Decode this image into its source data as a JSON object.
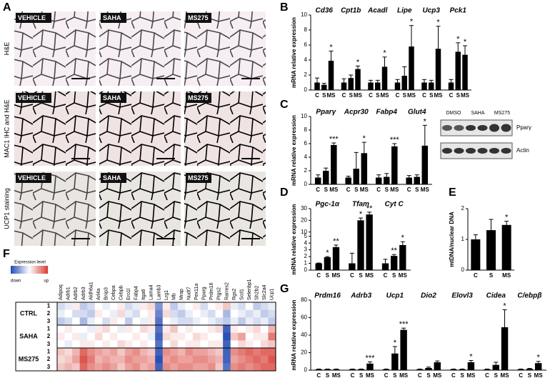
{
  "panel_labels": [
    "A",
    "B",
    "C",
    "D",
    "E",
    "F",
    "G"
  ],
  "micrographs": {
    "columns": [
      "VEHICLE",
      "SAHA",
      "MS275"
    ],
    "rows": [
      "H&E",
      "MAC1 IHC and H&E",
      "UCP1 staining"
    ]
  },
  "blot": {
    "lanes": [
      "DMSO",
      "SAHA",
      "MS275"
    ],
    "bands": [
      "Pparγ",
      "Actin"
    ]
  },
  "chart_data": [
    {
      "type": "bar",
      "ylabel": "mRNA relative expression",
      "categories": [
        "Cd36",
        "Cpt1b",
        "Acadl",
        "Lipe",
        "Ucp3",
        "Pck1"
      ],
      "series": [
        {
          "name": "C",
          "color": "#000000",
          "values": [
            1.0,
            1.0,
            1.0,
            1.0,
            1.0,
            1.0
          ],
          "errors": [
            0.6,
            0.5,
            0.3,
            0.4,
            0.4,
            0.4
          ]
        },
        {
          "name": "S",
          "color": "#000000",
          "values": [
            0.7,
            1.6,
            1.0,
            1.9,
            1.0,
            5.1
          ],
          "errors": [
            0.2,
            0.4,
            0.3,
            1.2,
            0.3,
            1.2
          ],
          "significance": [
            null,
            null,
            null,
            null,
            null,
            "*"
          ]
        },
        {
          "name": "MS",
          "color": "#000000",
          "values": [
            3.9,
            2.8,
            3.1,
            5.8,
            5.5,
            4.7
          ],
          "errors": [
            1.3,
            0.4,
            1.3,
            2.8,
            3.0,
            1.2
          ],
          "significance": [
            "*",
            "*",
            "*",
            "*",
            "*",
            "*"
          ]
        }
      ],
      "ylim": [
        0,
        10
      ],
      "yticks": [
        0,
        2,
        4,
        6,
        8,
        10
      ]
    },
    {
      "type": "bar",
      "ylabel": "mRNA relative expression",
      "categories": [
        "Pparγ",
        "Acpr30",
        "Fabp4",
        "Glut4"
      ],
      "series": [
        {
          "name": "C",
          "color": "#000000",
          "values": [
            1.0,
            1.0,
            1.0,
            1.0
          ],
          "errors": [
            0.4,
            0.2,
            0.4,
            0.3
          ]
        },
        {
          "name": "S",
          "color": "#000000",
          "values": [
            2.0,
            2.3,
            1.1,
            1.1
          ],
          "errors": [
            0.4,
            2.4,
            0.5,
            0.3
          ]
        },
        {
          "name": "MS",
          "color": "#000000",
          "values": [
            5.8,
            4.6,
            5.6,
            5.7
          ],
          "errors": [
            0.3,
            1.6,
            0.4,
            3.0
          ],
          "significance": [
            "***",
            "*",
            "***",
            "*"
          ]
        }
      ],
      "ylim": [
        0,
        10
      ],
      "yticks": [
        0,
        2,
        4,
        6,
        8,
        10
      ]
    },
    {
      "type": "bar",
      "ylabel": "mRNA relative expression",
      "categories": [
        "Pgc-1α",
        "Tfam",
        "Cyt C"
      ],
      "series": [
        {
          "name": "C",
          "color": "#000000",
          "values": [
            1.0,
            1.0,
            1.0
          ],
          "errors": [
            0.05,
            1.5,
            0.6
          ]
        },
        {
          "name": "S",
          "color": "#000000",
          "values": [
            1.9,
            20,
            2.1
          ],
          "errors": [
            0.1,
            2,
            0.2
          ],
          "significance": [
            "*",
            "*",
            "**"
          ]
        },
        {
          "name": "MS",
          "color": "#000000",
          "values": [
            3.4,
            25,
            3.7
          ],
          "errors": [
            0.3,
            2,
            0.5
          ],
          "significance": [
            "**",
            "**",
            "*"
          ]
        }
      ],
      "ylim": [
        0,
        30
      ],
      "axis_break": [
        5,
        10
      ],
      "yticks": [
        0,
        1,
        2,
        3,
        4,
        5,
        10,
        20,
        30
      ]
    },
    {
      "type": "bar",
      "ylabel": "mtDNA/nuclear DNA",
      "categories": [
        "C",
        "S",
        "MS"
      ],
      "color": "#000000",
      "values": [
        1.0,
        1.3,
        1.47
      ],
      "errors": [
        0.15,
        0.35,
        0.12
      ],
      "significance": [
        null,
        null,
        "*"
      ],
      "ylim": [
        0,
        2
      ],
      "yticks": [
        0,
        1,
        2
      ]
    },
    {
      "type": "heatmap",
      "colorbar": {
        "title": "Expression level",
        "low": "down",
        "high": "up",
        "zlim": [
          -1,
          1
        ],
        "low_color": "#2b50b6",
        "high_color": "#d8433b"
      },
      "genes": [
        "Adipoq",
        "Adrb1",
        "Adrb2",
        "Adrb3",
        "Aldh6a1",
        "Arl4a",
        "Bnip3",
        "Cebpa",
        "Cebpb",
        "Ero1l",
        "Fabp4",
        "Itga6",
        "Lama4",
        "Lamb3",
        "Lrg1",
        "Mb",
        "Mrap",
        "Nudt7",
        "Pex11a",
        "Pparg",
        "Prdm16",
        "Ptgs2",
        "Rarres2",
        "Rgs2",
        "Scd1",
        "Selenbp1",
        "Sh2b2",
        "Slc2a4",
        "Ucp1"
      ],
      "groups": [
        "CTRL",
        "SAHA",
        "MS275"
      ],
      "row_labels": [
        "1",
        "2",
        "3",
        "1",
        "2",
        "3",
        "1",
        "2",
        "3"
      ],
      "values": [
        [
          -0.2,
          -0.1,
          0.1,
          -0.3,
          -0.2,
          0,
          -0.1,
          0,
          0.1,
          -0.2,
          -0.1,
          0.1,
          0.2,
          -0.6,
          0.1,
          -0.3,
          -0.1,
          0,
          0.1,
          -0.2,
          0,
          0.1,
          0.3,
          -0.1,
          -0.2,
          0,
          -0.3,
          -0.2,
          -0.1
        ],
        [
          -0.1,
          0,
          -0.2,
          -0.2,
          -0.3,
          0.1,
          0,
          -0.1,
          0.2,
          -0.1,
          -0.2,
          0,
          0.1,
          -0.7,
          0.2,
          -0.2,
          -0.3,
          -0.1,
          0,
          -0.1,
          -0.2,
          0,
          -0.4,
          0,
          -0.1,
          -0.2,
          -0.1,
          -0.3,
          -0.2
        ],
        [
          -0.3,
          -0.2,
          0,
          -0.4,
          -0.1,
          0,
          -0.2,
          0.1,
          0,
          -0.3,
          0,
          -0.1,
          0.1,
          -0.8,
          0,
          -0.1,
          -0.2,
          -0.2,
          -0.1,
          0,
          -0.1,
          -0.2,
          -0.3,
          -0.1,
          -0.3,
          -0.1,
          -0.2,
          -0.1,
          -0.3
        ],
        [
          0,
          0.1,
          0,
          0,
          -0.1,
          0.1,
          0.2,
          0,
          -0.1,
          0.1,
          0,
          0.2,
          0.1,
          -0.8,
          0.1,
          0.3,
          0,
          0.1,
          0,
          0,
          0.1,
          0.2,
          -0.9,
          0.1,
          0,
          0.1,
          0.2,
          0,
          0.4
        ],
        [
          0.1,
          0,
          0.1,
          -0.1,
          0,
          0.2,
          0,
          0.1,
          0,
          0,
          0.1,
          0,
          -0.1,
          -0.9,
          0.2,
          0.1,
          0.1,
          0,
          0.2,
          0.1,
          0,
          0,
          -1,
          0.3,
          0.5,
          0,
          0.1,
          0.1,
          0.7
        ],
        [
          0,
          -0.1,
          0,
          0.1,
          0.1,
          0,
          0.1,
          0,
          0.2,
          0.1,
          0,
          0.1,
          0,
          -0.8,
          0,
          0.2,
          0,
          0.1,
          0.1,
          0,
          0.1,
          0.1,
          -0.9,
          0,
          0.2,
          0.1,
          0,
          0.2,
          0.3
        ],
        [
          0.3,
          0.2,
          0.4,
          0.8,
          0.6,
          0.5,
          0.4,
          0.5,
          0.3,
          0.5,
          0.6,
          0.4,
          0.3,
          -0.9,
          0.6,
          0.5,
          0.4,
          0.6,
          0.5,
          0.5,
          0.4,
          0.3,
          -0.9,
          0.6,
          0.7,
          0.8,
          0.7,
          0.8,
          0.8
        ],
        [
          0.2,
          0.3,
          0.5,
          0.9,
          0.7,
          0.4,
          0.5,
          0.4,
          0.4,
          0.6,
          0.5,
          0.5,
          0.4,
          -1,
          0.5,
          0.6,
          0.5,
          0.5,
          0.6,
          0.6,
          0.5,
          0.4,
          -0.9,
          0.5,
          0.6,
          0.7,
          0.8,
          0.7,
          0.9
        ],
        [
          0.3,
          0.4,
          0.3,
          0.8,
          0.6,
          0.5,
          0.6,
          0.5,
          0.3,
          0.5,
          0.6,
          0.4,
          0.5,
          -0.9,
          0.6,
          0.5,
          0.6,
          0.6,
          0.5,
          0.5,
          0.6,
          0.3,
          -0.8,
          0.6,
          0.7,
          0.6,
          0.7,
          0.8,
          0.8
        ]
      ]
    },
    {
      "type": "bar",
      "ylabel": "mRNA relative expression",
      "categories": [
        "Prdm16",
        "Adrb3",
        "Ucp1",
        "Dio2",
        "Elovl3",
        "Cidea",
        "C/ebpβ"
      ],
      "series": [
        {
          "name": "C",
          "color": "#000000",
          "values": [
            1,
            1,
            1,
            1,
            1,
            1,
            1
          ],
          "errors": [
            0.3,
            0.3,
            0.3,
            0.3,
            0.3,
            0.3,
            0.3
          ]
        },
        {
          "name": "S",
          "color": "#000000",
          "values": [
            1,
            1,
            19,
            2.5,
            1,
            6,
            1.5
          ],
          "errors": [
            0.3,
            0.3,
            8,
            1,
            0.3,
            3,
            0.5
          ],
          "significance": [
            null,
            null,
            "*",
            null,
            null,
            null,
            null
          ]
        },
        {
          "name": "MS",
          "color": "#000000",
          "values": [
            1,
            7.5,
            46,
            9,
            9,
            49,
            8
          ],
          "errors": [
            0.3,
            2,
            2,
            1.5,
            2,
            20,
            2
          ],
          "significance": [
            null,
            "***",
            "***",
            null,
            "*",
            "*",
            "*"
          ]
        }
      ],
      "ylim": [
        0,
        80
      ],
      "yticks": [
        0,
        20,
        40,
        60,
        80
      ]
    }
  ]
}
